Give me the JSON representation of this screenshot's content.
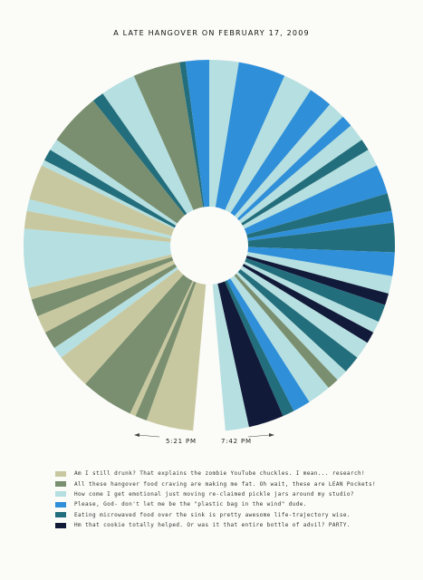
{
  "title": "A LATE HANGOVER ON FEBRUARY 17, 2009",
  "start_label": "5:21 PM",
  "end_label": "7:42 PM",
  "legend": [
    {
      "label": "Am I still drunk? That explains the zombie YouTube chuckles. I mean... research!",
      "color": "#c8c8a0"
    },
    {
      "label": "All these hangover food craving are making me fat. Oh wait, these are LEAN Pockets!",
      "color": "#7a8f6f"
    },
    {
      "label": "How come I get emotional just moving re-claimed pickle jars around my studio?",
      "color": "#b5dfe0"
    },
    {
      "label": "Please, God- don't let me be the \"plastic bag in the wind\" dude.",
      "color": "#2f8fd8"
    },
    {
      "label": "Eating microwaved food over the sink is pretty awesome life-trajectory wise.",
      "color": "#236e7c"
    },
    {
      "label": "Hm that cookie totally helped. Or was it that entire bottle of advil? PARTY.",
      "color": "#121a3a"
    }
  ],
  "chart_data": {
    "type": "pie",
    "style": "donut",
    "direction": "counter-clockwise from bottom",
    "title": "A LATE HANGOVER ON FEBRUARY 17, 2009",
    "start_time": "5:21 PM",
    "end_time": "7:42 PM",
    "categories": [
      "Am I still drunk? That explains the zombie YouTube chuckles. I mean... research!",
      "All these hangover food craving are making me fat. Oh wait, these are LEAN Pockets!",
      "How come I get emotional just moving re-claimed pickle jars around my studio?",
      "Please, God- don't let me be the \"plastic bag in the wind\" dude.",
      "Eating microwaved food over the sink is pretty awesome life-trajectory wise.",
      "Hm that cookie totally helped. Or was it that entire bottle of advil? PARTY."
    ],
    "sequence": [
      {
        "state": 0,
        "value": 8
      },
      {
        "state": 1,
        "value": 2
      },
      {
        "state": 0,
        "value": 1
      },
      {
        "state": 1,
        "value": 9
      },
      {
        "state": 0,
        "value": 6
      },
      {
        "state": 2,
        "value": 2
      },
      {
        "state": 1,
        "value": 3
      },
      {
        "state": 0,
        "value": 3
      },
      {
        "state": 1,
        "value": 3
      },
      {
        "state": 0,
        "value": 2
      },
      {
        "state": 2,
        "value": 10
      },
      {
        "state": 0,
        "value": 3
      },
      {
        "state": 2,
        "value": 2
      },
      {
        "state": 0,
        "value": 6
      },
      {
        "state": 2,
        "value": 1
      },
      {
        "state": 4,
        "value": 2
      },
      {
        "state": 2,
        "value": 2
      },
      {
        "state": 1,
        "value": 9
      },
      {
        "state": 4,
        "value": 2
      },
      {
        "state": 2,
        "value": 6
      },
      {
        "state": 1,
        "value": 8
      },
      {
        "state": 4,
        "value": 1
      },
      {
        "state": 3,
        "value": 4
      },
      {
        "state": 2,
        "value": 5
      },
      {
        "state": 3,
        "value": 8
      },
      {
        "state": 2,
        "value": 5
      },
      {
        "state": 3,
        "value": 4
      },
      {
        "state": 2,
        "value": 3
      },
      {
        "state": 3,
        "value": 2
      },
      {
        "state": 2,
        "value": 3
      },
      {
        "state": 4,
        "value": 2
      },
      {
        "state": 2,
        "value": 3
      },
      {
        "state": 3,
        "value": 5
      },
      {
        "state": 4,
        "value": 3
      },
      {
        "state": 3,
        "value": 2
      },
      {
        "state": 4,
        "value": 5
      },
      {
        "state": 3,
        "value": 4
      },
      {
        "state": 2,
        "value": 3
      },
      {
        "state": 5,
        "value": 2
      },
      {
        "state": 4,
        "value": 3
      },
      {
        "state": 2,
        "value": 2
      },
      {
        "state": 5,
        "value": 2
      },
      {
        "state": 2,
        "value": 3
      },
      {
        "state": 4,
        "value": 3
      },
      {
        "state": 2,
        "value": 2
      },
      {
        "state": 1,
        "value": 2
      },
      {
        "state": 2,
        "value": 4
      },
      {
        "state": 3,
        "value": 3
      },
      {
        "state": 4,
        "value": 2
      },
      {
        "state": 5,
        "value": 6
      },
      {
        "state": 2,
        "value": 4
      }
    ]
  }
}
